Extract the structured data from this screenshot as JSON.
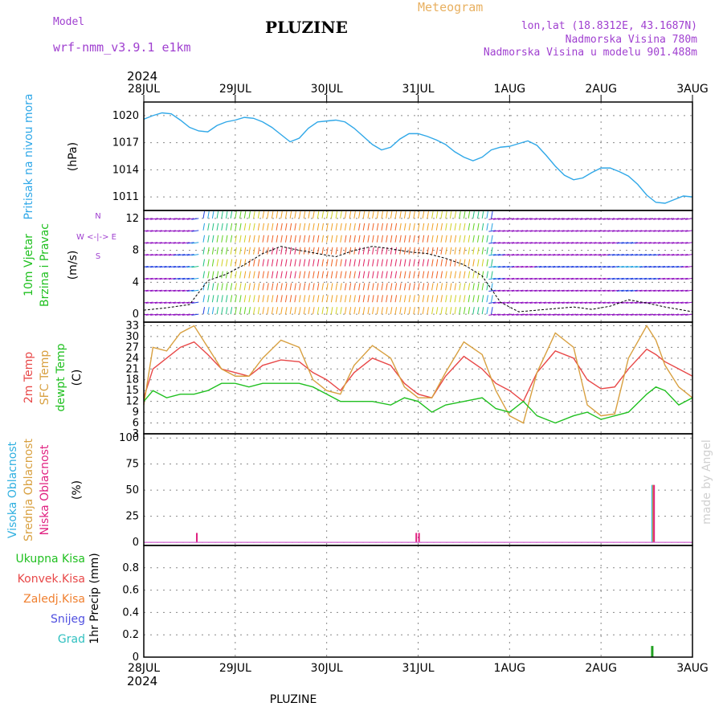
{
  "header": {
    "model_label": "Model",
    "model_name": "wrf-nmm_v3.9.1 e1km",
    "station": "PLUZINE",
    "meteogram": "Meteogram",
    "lonlat": "lon,lat (18.8312E, 43.1687N)",
    "altitude": "Nadmorska Visina 780m",
    "model_altitude": "Nadmorska Visina u modelu 901.488m",
    "footer_station": "PLUZINE",
    "credit": "made by Angel"
  },
  "colors": {
    "pressure": "#30a8e8",
    "t2m": "#e84848",
    "sfc": "#d8a040",
    "dewpt": "#20c020",
    "frame": "#000000",
    "grid": "#808080"
  },
  "chart_data": [
    {
      "type": "line",
      "panel": "pressure",
      "title_lines": [
        "Pritisak na nivou mora"
      ],
      "unit": "(hPa)",
      "year_top": "2024",
      "x_ticks": [
        "28JUL",
        "29JUL",
        "30JUL",
        "31JUL",
        "1AUG",
        "2AUG",
        "3AUG"
      ],
      "ylim": [
        1009.5,
        1021.5
      ],
      "yticks": [
        1011,
        1014,
        1017,
        1020
      ],
      "series": [
        {
          "color": "#30a8e8",
          "x": [
            0,
            0.1,
            0.2,
            0.3,
            0.4,
            0.5,
            0.6,
            0.7,
            0.8,
            0.9,
            1.0,
            1.1,
            1.2,
            1.3,
            1.4,
            1.5,
            1.6,
            1.7,
            1.8,
            1.9,
            2.0,
            2.1,
            2.2,
            2.3,
            2.4,
            2.5,
            2.6,
            2.7,
            2.8,
            2.9,
            3.0,
            3.1,
            3.2,
            3.3,
            3.4,
            3.5,
            3.6,
            3.7,
            3.8,
            3.9,
            4.0,
            4.1,
            4.2,
            4.3,
            4.4,
            4.5,
            4.6,
            4.7,
            4.8,
            4.9,
            5.0,
            5.1,
            5.2,
            5.3,
            5.4,
            5.5,
            5.6,
            5.7,
            5.8,
            5.9,
            6.0
          ],
          "values": [
            1019.6,
            1020.0,
            1020.3,
            1020.2,
            1019.5,
            1018.7,
            1018.3,
            1018.2,
            1018.9,
            1019.3,
            1019.5,
            1019.8,
            1019.7,
            1019.3,
            1018.7,
            1017.9,
            1017.1,
            1017.5,
            1018.6,
            1019.3,
            1019.4,
            1019.5,
            1019.3,
            1018.6,
            1017.7,
            1016.8,
            1016.2,
            1016.5,
            1017.4,
            1018.0,
            1018.0,
            1017.7,
            1017.3,
            1016.8,
            1016.0,
            1015.4,
            1015.0,
            1015.4,
            1016.2,
            1016.5,
            1016.6,
            1016.9,
            1017.2,
            1016.7,
            1015.6,
            1014.4,
            1013.4,
            1012.9,
            1013.1,
            1013.7,
            1014.2,
            1014.2,
            1013.8,
            1013.3,
            1012.4,
            1011.2,
            1010.4,
            1010.3,
            1010.7,
            1011.1,
            1011.0
          ]
        }
      ]
    },
    {
      "type": "scatter",
      "panel": "wind",
      "title_lines": [
        "10m Vjetar",
        "Brzina i Pravac"
      ],
      "unit": "(m/s)",
      "compass": [
        "N",
        "W",
        "E",
        "S"
      ],
      "compass_line": "W <-|-> E",
      "ylim": [
        -1,
        13
      ],
      "yticks": [
        0,
        4,
        8,
        12
      ],
      "speed": {
        "x": [
          0,
          0.25,
          0.5,
          0.7,
          0.9,
          1.1,
          1.3,
          1.5,
          1.7,
          1.9,
          2.1,
          2.3,
          2.5,
          2.7,
          2.9,
          3.1,
          3.3,
          3.5,
          3.7,
          3.9,
          4.1,
          4.3,
          4.5,
          4.7,
          4.9,
          5.1,
          5.3,
          5.5,
          5.7,
          5.9,
          6.0
        ],
        "values": [
          0.5,
          0.8,
          1.2,
          4.2,
          5.0,
          6.2,
          7.6,
          8.5,
          8.0,
          7.6,
          7.2,
          8.0,
          8.5,
          8.2,
          7.8,
          7.6,
          7.0,
          6.2,
          4.8,
          1.5,
          0.3,
          0.5,
          0.7,
          0.9,
          0.6,
          1.0,
          1.8,
          1.4,
          0.9,
          0.5,
          0.3
        ]
      }
    },
    {
      "type": "line",
      "panel": "temperature",
      "title_lines": [
        "2m Temp",
        "SFC Temp",
        "dewpt Temp"
      ],
      "unit": "(C)",
      "ylim": [
        3,
        34
      ],
      "yticks": [
        3,
        6,
        9,
        12,
        15,
        18,
        21,
        24,
        27,
        30,
        33
      ],
      "series": [
        {
          "name": "2m Temp",
          "color": "#e84848",
          "x": [
            0,
            0.1,
            0.25,
            0.4,
            0.55,
            0.7,
            0.85,
            1.0,
            1.15,
            1.3,
            1.5,
            1.7,
            1.85,
            2.0,
            2.15,
            2.3,
            2.5,
            2.7,
            2.85,
            3.0,
            3.15,
            3.3,
            3.5,
            3.7,
            3.85,
            4.0,
            4.15,
            4.3,
            4.5,
            4.7,
            4.85,
            5.0,
            5.15,
            5.3,
            5.5,
            5.6,
            5.7,
            5.85,
            6.0
          ],
          "values": [
            13,
            21,
            24,
            27,
            28.5,
            25,
            21,
            20,
            19,
            22,
            23.5,
            23,
            20,
            18,
            15,
            20,
            24,
            22,
            17,
            14,
            13,
            19,
            24.5,
            21,
            17,
            15,
            12,
            20,
            26,
            24,
            18,
            15.5,
            16,
            21,
            26.5,
            25,
            23,
            21,
            19
          ]
        },
        {
          "name": "SFC Temp",
          "color": "#d8a040",
          "x": [
            0,
            0.1,
            0.25,
            0.4,
            0.55,
            0.7,
            0.85,
            1.0,
            1.15,
            1.3,
            1.5,
            1.7,
            1.85,
            2.0,
            2.15,
            2.3,
            2.5,
            2.7,
            2.85,
            3.0,
            3.15,
            3.3,
            3.5,
            3.7,
            3.85,
            4.0,
            4.15,
            4.3,
            4.5,
            4.7,
            4.85,
            5.0,
            5.15,
            5.3,
            5.5,
            5.6,
            5.7,
            5.85,
            6.0
          ],
          "values": [
            11,
            27,
            26,
            31,
            33,
            27,
            21,
            19,
            19,
            24,
            29,
            27,
            18,
            15,
            14,
            22,
            27.5,
            24,
            16,
            13,
            13,
            20,
            28.5,
            25,
            15,
            8,
            6,
            20,
            31,
            27,
            11,
            8,
            8.5,
            24,
            33,
            29,
            22,
            16,
            13
          ]
        },
        {
          "name": "dewpt Temp",
          "color": "#20c020",
          "x": [
            0,
            0.1,
            0.25,
            0.4,
            0.55,
            0.7,
            0.85,
            1.0,
            1.15,
            1.3,
            1.5,
            1.7,
            1.85,
            2.0,
            2.15,
            2.3,
            2.5,
            2.7,
            2.85,
            3.0,
            3.15,
            3.3,
            3.5,
            3.7,
            3.85,
            4.0,
            4.15,
            4.3,
            4.5,
            4.7,
            4.85,
            5.0,
            5.15,
            5.3,
            5.5,
            5.6,
            5.7,
            5.85,
            6.0
          ],
          "values": [
            12,
            15,
            13,
            14,
            14,
            15,
            17,
            17,
            16,
            17,
            17,
            17,
            16,
            14,
            12,
            12,
            12,
            11,
            13,
            12,
            9,
            11,
            12,
            13,
            10,
            9,
            12,
            8,
            6,
            8,
            9,
            7,
            8,
            9,
            14,
            16,
            15,
            11,
            13
          ]
        }
      ]
    },
    {
      "type": "bar",
      "panel": "clouds",
      "title_lines": [
        "Visoka Oblacnost",
        "Srednja Oblacnost",
        "Niska Oblacnost"
      ],
      "unit": "(%)",
      "ylim": [
        -3,
        104
      ],
      "yticks": [
        0,
        25,
        50,
        75,
        100
      ],
      "series": [
        {
          "name": "Visoka Oblacnost",
          "color": "#30b0e0",
          "x": [
            5.56
          ],
          "values": [
            55
          ]
        },
        {
          "name": "Srednja Oblacnost",
          "color": "#d8a040",
          "x": [
            5.57
          ],
          "values": [
            55
          ]
        },
        {
          "name": "Niska Oblacnost",
          "color": "#e02080",
          "x": [
            0.58,
            2.98,
            3.01,
            5.58
          ],
          "values": [
            9,
            9,
            9,
            55
          ]
        }
      ]
    },
    {
      "type": "bar",
      "panel": "precip",
      "legend": [
        "Ukupna Kisa",
        "Konvek.Kisa",
        "Zaledj.Kisa",
        "Snijeg",
        "Grad"
      ],
      "legend_colors": [
        "#20c020",
        "#e84848",
        "#f08030",
        "#5050e0",
        "#30c0c0"
      ],
      "unit": "1hr Precip (mm)",
      "ylim": [
        0,
        1.0
      ],
      "yticks": [
        0,
        0.2,
        0.4,
        0.6,
        0.8
      ],
      "year_bottom": "2024",
      "series": [
        {
          "name": "Ukupna Kisa",
          "color": "#20a020",
          "x": [
            5.56
          ],
          "values": [
            0.1
          ]
        }
      ]
    }
  ]
}
